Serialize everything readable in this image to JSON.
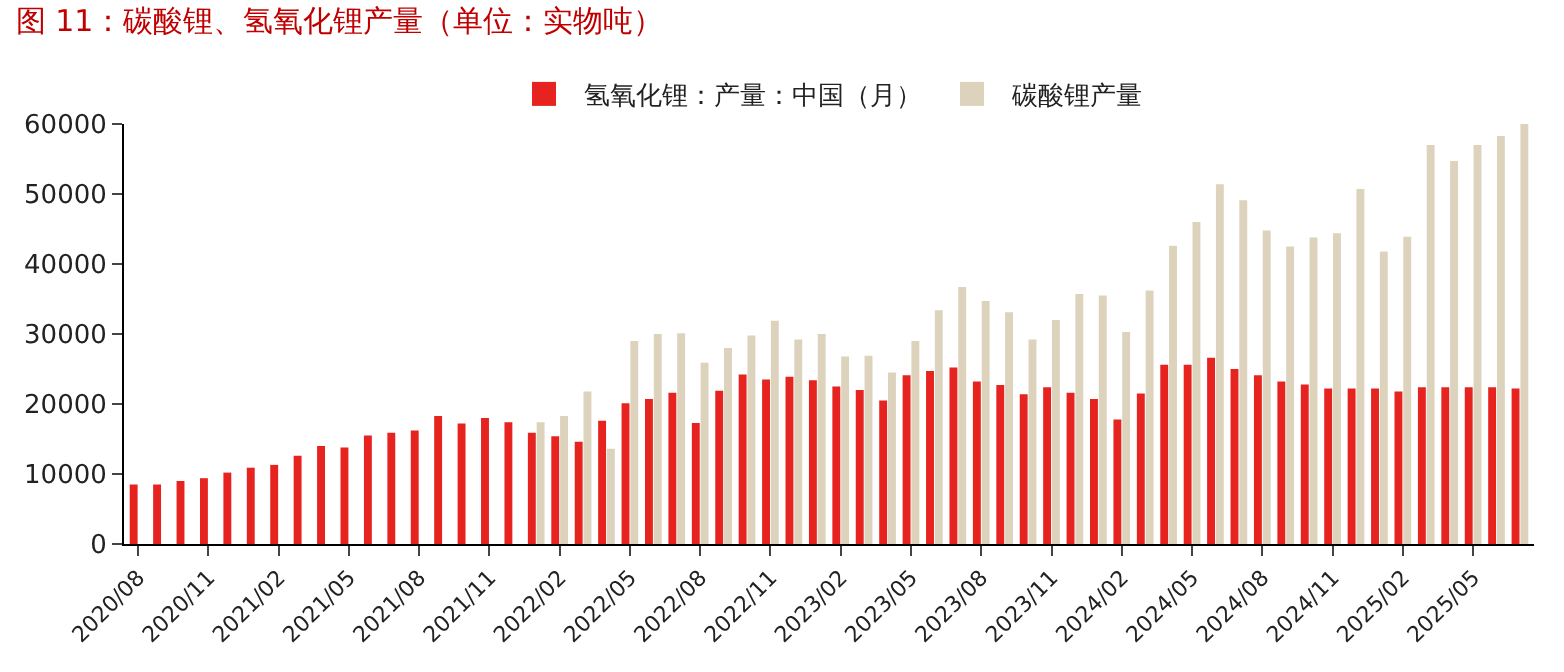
{
  "chart_data": {
    "type": "bar",
    "title": "图 11：碳酸锂、氢氧化锂产量（单位：实物吨）",
    "categories": [
      "2020/08",
      null,
      null,
      "2020/11",
      null,
      null,
      "2021/02",
      null,
      null,
      "2021/05",
      null,
      null,
      "2021/08",
      null,
      null,
      "2021/11",
      null,
      null,
      "2022/02",
      null,
      null,
      "2022/05",
      null,
      null,
      "2022/08",
      null,
      null,
      "2022/11",
      null,
      null,
      "2023/02",
      null,
      null,
      "2023/05",
      null,
      null,
      "2023/08",
      null,
      null,
      "2023/11",
      null,
      null,
      "2024/02",
      null,
      null,
      "2024/05",
      null,
      null,
      "2024/08",
      null,
      null,
      "2024/11",
      null,
      null,
      "2025/02",
      null,
      null,
      "2025/05",
      null,
      null
    ],
    "series": [
      {
        "name": "氢氧化锂：产量：中国（月）",
        "color": "#e6231f",
        "values": [
          8500,
          8500,
          9000,
          9400,
          10200,
          10900,
          11300,
          12600,
          14000,
          13800,
          15500,
          15900,
          16200,
          18300,
          17200,
          18000,
          17400,
          15900,
          15400,
          14600,
          17600,
          20100,
          20700,
          21600,
          17300,
          21900,
          24200,
          23500,
          23900,
          23400,
          22500,
          22000,
          20500,
          24100,
          24700,
          25200,
          23200,
          22700,
          21400,
          22400,
          21600,
          20700,
          17800,
          21500,
          25600,
          25600,
          26600,
          25000,
          24100,
          23200,
          22800,
          22200,
          22200,
          22200,
          21800,
          22400,
          22400,
          22400,
          22400,
          22200
        ]
      },
      {
        "name": "碳酸锂产量",
        "color": "#ddd3bc",
        "values": [
          null,
          null,
          null,
          null,
          null,
          null,
          null,
          null,
          null,
          null,
          null,
          null,
          null,
          null,
          null,
          null,
          null,
          17400,
          18300,
          21800,
          13600,
          29000,
          30000,
          30100,
          25900,
          28000,
          29800,
          31900,
          29200,
          30000,
          26800,
          26900,
          24500,
          29000,
          33400,
          36700,
          34700,
          33100,
          29200,
          32000,
          35700,
          35500,
          30300,
          36200,
          42600,
          46000,
          51400,
          49100,
          44800,
          42500,
          43800,
          44400,
          50700,
          41800,
          43900,
          57000,
          54700,
          57000,
          58300,
          60000
        ]
      }
    ],
    "ylim": [
      0,
      60000
    ],
    "yticks": [
      0,
      10000,
      20000,
      30000,
      40000,
      50000,
      60000
    ],
    "legend": "top"
  }
}
